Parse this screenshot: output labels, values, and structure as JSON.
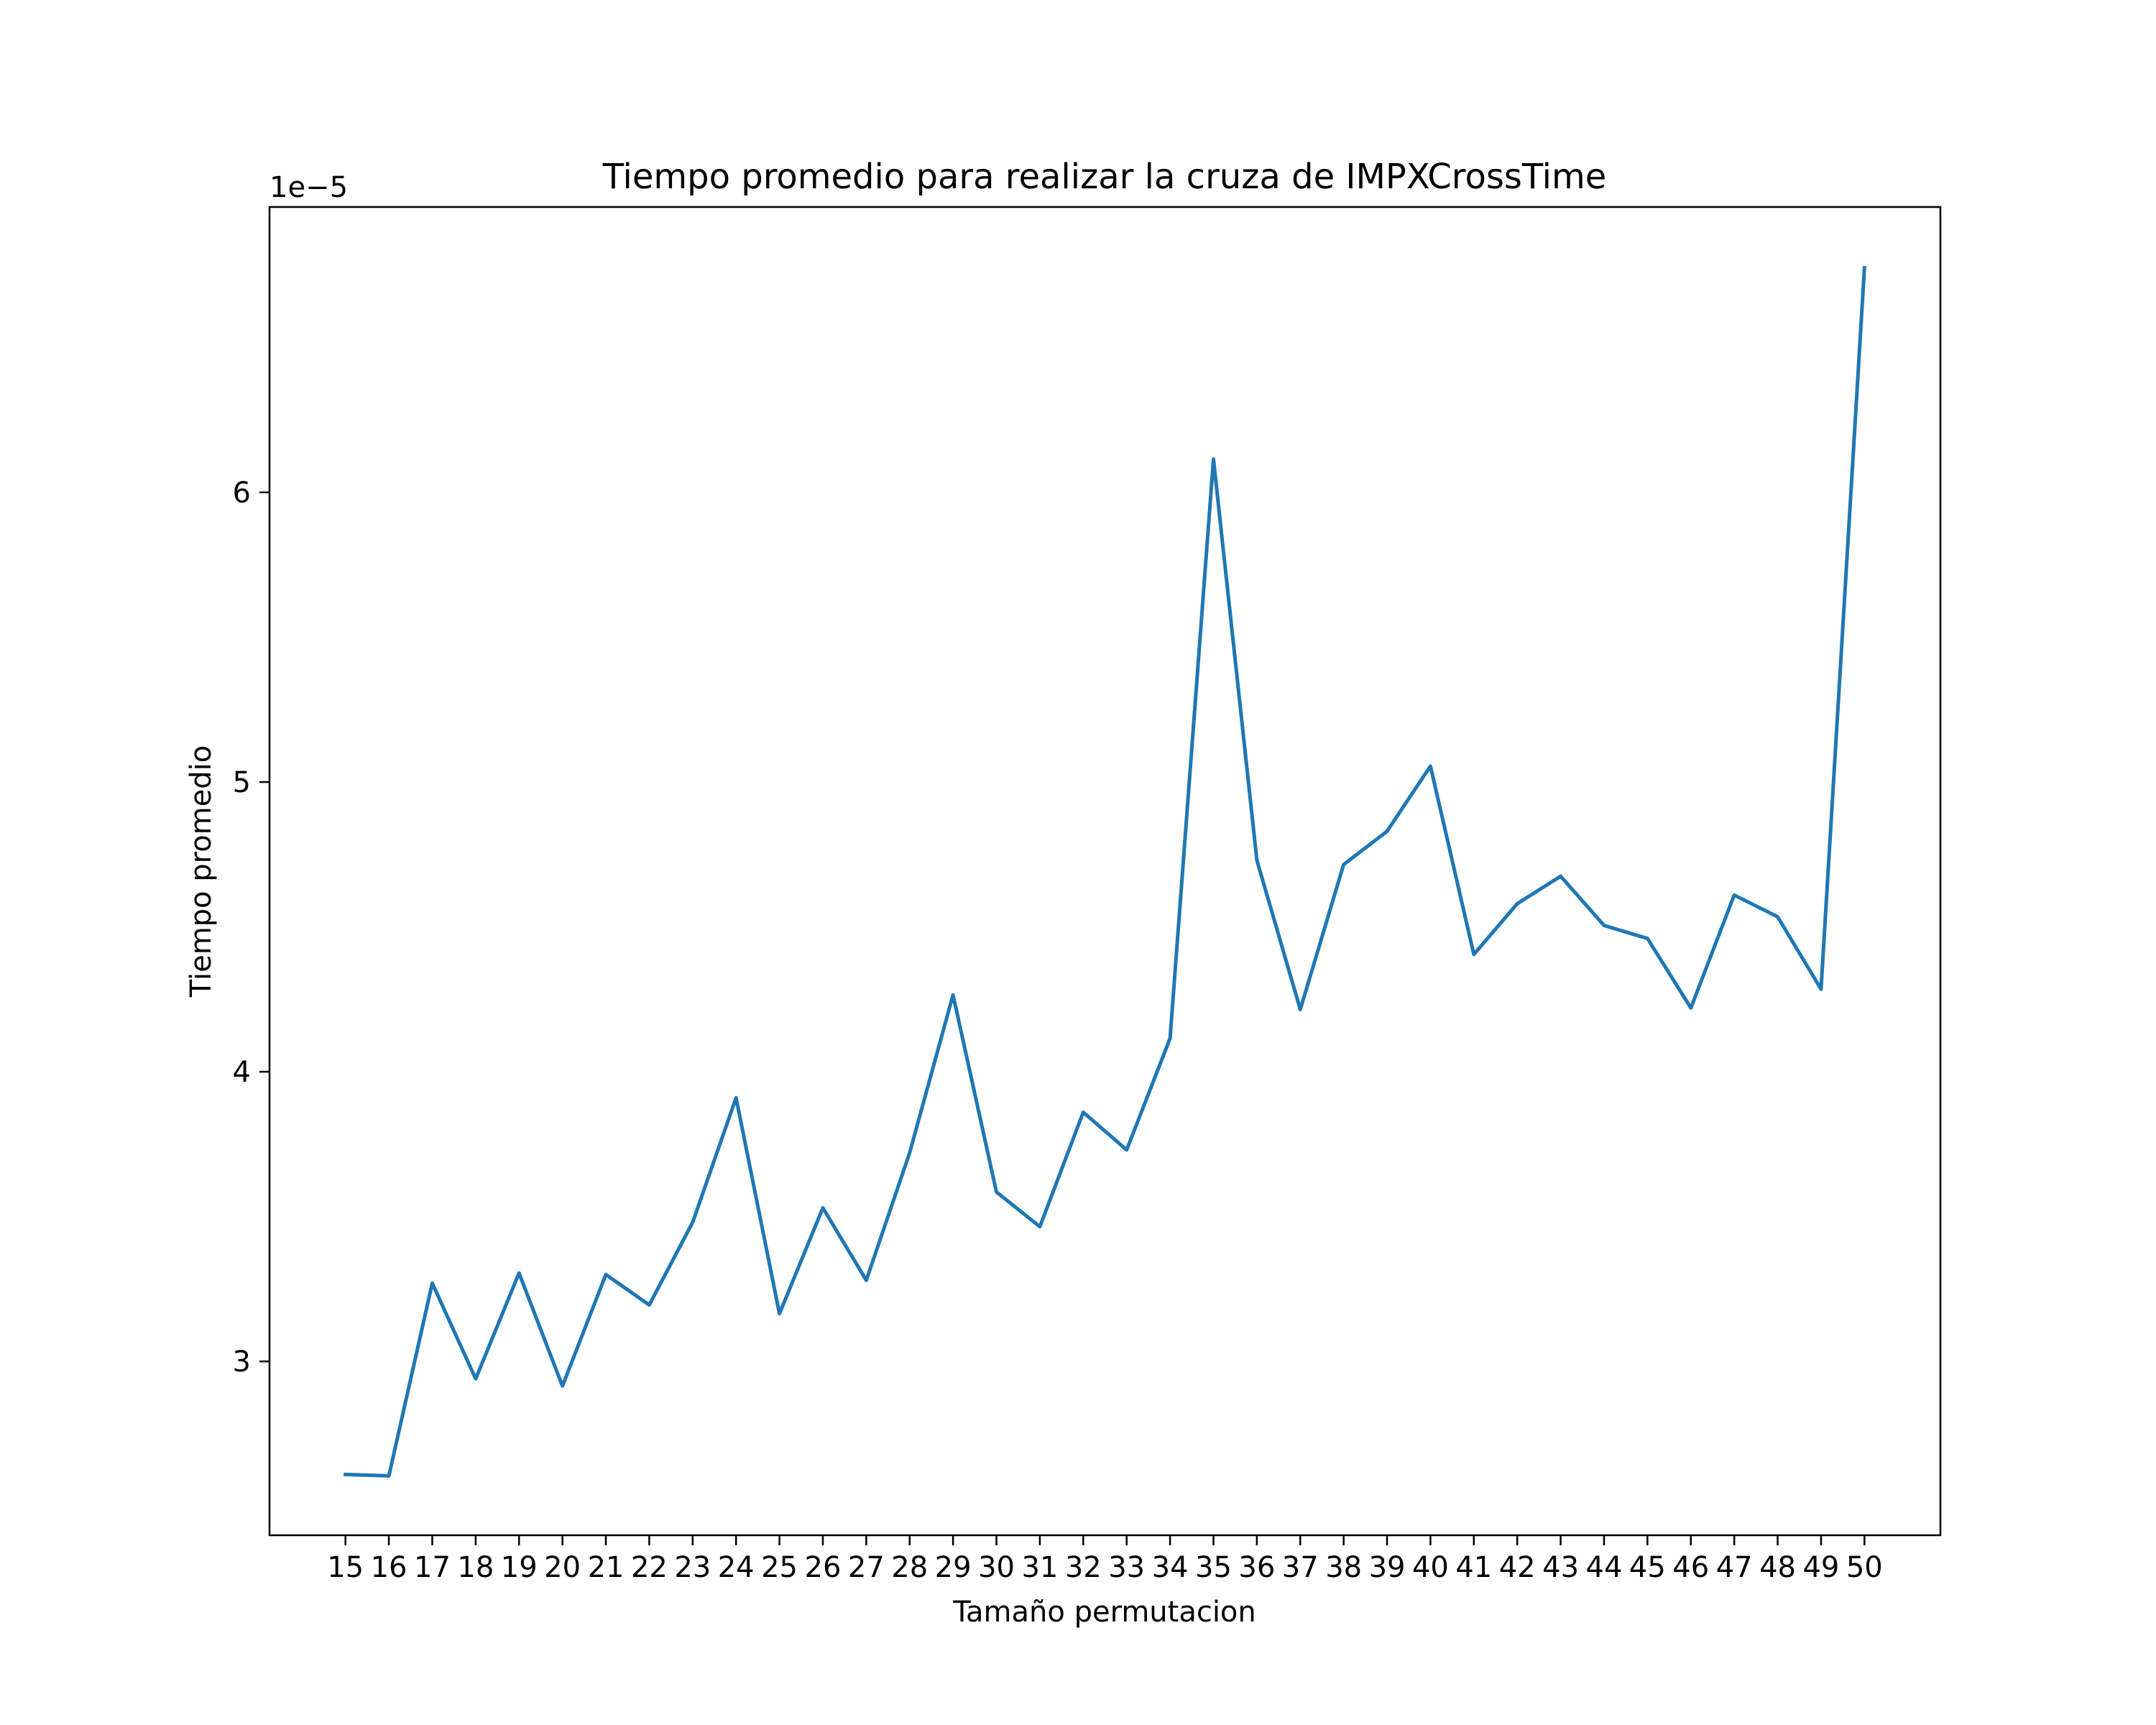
{
  "chart_data": {
    "type": "line",
    "title": "Tiempo promedio para realizar la cruza de IMPXCrossTime",
    "xlabel": "Tamaño permutacion",
    "ylabel": "Tiempo promedio",
    "y_offset_label": "1e−5",
    "y_scale_exponent": -5,
    "x": [
      15,
      16,
      17,
      18,
      19,
      20,
      21,
      22,
      23,
      24,
      25,
      26,
      27,
      28,
      29,
      30,
      31,
      32,
      33,
      34,
      35,
      36,
      37,
      38,
      39,
      40,
      41,
      42,
      43,
      44,
      45,
      46,
      47,
      48,
      49,
      50
    ],
    "x_tick_labels": [
      "15",
      "16",
      "17",
      "18",
      "19",
      "20",
      "21",
      "22",
      "23",
      "24",
      "25",
      "26",
      "27",
      "28",
      "29",
      "30",
      "31",
      "32",
      "33",
      "34",
      "35",
      "36",
      "37",
      "38",
      "39",
      "40",
      "41",
      "42",
      "43",
      "44",
      "45",
      "46",
      "47",
      "48",
      "49",
      "50"
    ],
    "y_ticks": [
      3,
      4,
      5,
      6
    ],
    "y_tick_labels": [
      "3",
      "4",
      "5",
      "6"
    ],
    "series": [
      {
        "color": "#1f77b4",
        "values": [
          2.61,
          2.605,
          3.27,
          2.94,
          3.305,
          2.915,
          3.3,
          3.195,
          3.48,
          3.91,
          3.165,
          3.53,
          3.28,
          3.72,
          4.265,
          3.585,
          3.465,
          3.86,
          3.73,
          4.115,
          6.115,
          4.73,
          4.215,
          4.715,
          4.83,
          5.055,
          4.405,
          4.58,
          4.675,
          4.505,
          4.46,
          4.22,
          4.61,
          4.535,
          4.285,
          6.775
        ]
      }
    ],
    "xlim": [
      13.25,
      51.75
    ],
    "ylim": [
      2.4,
      6.985
    ],
    "grid": false,
    "legend": "none"
  }
}
